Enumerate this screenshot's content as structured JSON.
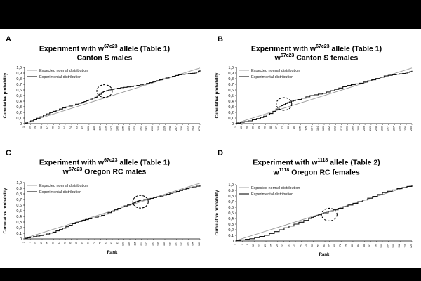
{
  "chart_data": [
    {
      "type": "line",
      "letter": "A",
      "title_parts": [
        "Experiment with w",
        "67c23",
        " allele (Table 1)"
      ],
      "subtitle_parts": [
        "",
        "",
        "Canton S males"
      ],
      "xlabel": "",
      "ylabel": "Cumulative probability",
      "yticks": [
        "0",
        "0,1",
        "0,2",
        "0,3",
        "0,4",
        "0,5",
        "0,6",
        "0,7",
        "0,8",
        "0,9",
        "1,0"
      ],
      "ylim": [
        0,
        1
      ],
      "x_range": [
        1,
        273
      ],
      "grid": false,
      "legend_position": "top-left",
      "series": [
        {
          "name": "Expected normal distribution",
          "x": [
            1,
            273
          ],
          "y": [
            0.01,
            0.99
          ]
        },
        {
          "name": "Experimental distribution",
          "x": [
            1,
            15,
            30,
            45,
            60,
            75,
            90,
            100,
            110,
            120,
            125,
            135,
            150,
            165,
            180,
            195,
            210,
            225,
            240,
            255,
            265,
            273
          ],
          "y": [
            0.01,
            0.07,
            0.15,
            0.22,
            0.28,
            0.33,
            0.38,
            0.42,
            0.47,
            0.55,
            0.58,
            0.61,
            0.64,
            0.66,
            0.69,
            0.73,
            0.78,
            0.83,
            0.87,
            0.89,
            0.9,
            0.95
          ]
        }
      ]
    },
    {
      "type": "line",
      "letter": "B",
      "title_parts": [
        "Experiment with w",
        "67c23",
        " allele (Table 1)"
      ],
      "subtitle_parts": [
        "w",
        "67c23",
        " Canton S females"
      ],
      "xlabel": "",
      "ylabel": "Cumulative probability",
      "yticks": [
        "0",
        "0,1",
        "0,2",
        "0,3",
        "0,4",
        "0,5",
        "0,6",
        "0,7",
        "0,8",
        "0,9",
        "1,0"
      ],
      "ylim": [
        0,
        1
      ],
      "x_range": [
        1,
        285
      ],
      "grid": false,
      "legend_position": "top-left",
      "series": [
        {
          "name": "Expected normal distribution",
          "x": [
            1,
            285
          ],
          "y": [
            0.01,
            0.99
          ]
        },
        {
          "name": "Experimental distribution",
          "x": [
            1,
            20,
            40,
            55,
            70,
            80,
            90,
            100,
            120,
            140,
            160,
            180,
            200,
            220,
            240,
            260,
            275,
            285
          ],
          "y": [
            0.01,
            0.05,
            0.11,
            0.18,
            0.3,
            0.36,
            0.4,
            0.43,
            0.5,
            0.54,
            0.61,
            0.68,
            0.72,
            0.78,
            0.85,
            0.88,
            0.9,
            0.94
          ]
        }
      ]
    },
    {
      "type": "line",
      "letter": "C",
      "title_parts": [
        "Experiment with w",
        "67c23",
        " allele (Table 1)"
      ],
      "subtitle_parts": [
        "w",
        "67c23",
        " Oregon RC males"
      ],
      "xlabel": "Rank",
      "ylabel": "Cumulative probability",
      "yticks": [
        "0",
        "0,1",
        "0,2",
        "0,3",
        "0,4",
        "0,5",
        "0,6",
        "0,7",
        "0,8",
        "0,9",
        "1,0"
      ],
      "ylim": [
        0,
        1
      ],
      "x_range": [
        1,
        181
      ],
      "grid": false,
      "legend_position": "top-left",
      "series": [
        {
          "name": "Expected normal distribution",
          "x": [
            1,
            181
          ],
          "y": [
            0.01,
            0.99
          ]
        },
        {
          "name": "Experimental distribution",
          "x": [
            1,
            10,
            20,
            30,
            40,
            50,
            60,
            70,
            80,
            90,
            100,
            110,
            115,
            120,
            130,
            140,
            150,
            160,
            170,
            181
          ],
          "y": [
            0.01,
            0.04,
            0.07,
            0.12,
            0.19,
            0.27,
            0.33,
            0.37,
            0.42,
            0.49,
            0.57,
            0.62,
            0.66,
            0.69,
            0.72,
            0.76,
            0.81,
            0.86,
            0.91,
            0.95
          ]
        }
      ]
    },
    {
      "type": "line",
      "letter": "D",
      "title_parts": [
        "Experiment with w",
        "1118",
        " allele (Table 2)"
      ],
      "subtitle_parts": [
        "w",
        "1118",
        " Oregon RC females"
      ],
      "xlabel": "Rank",
      "ylabel": "Cumulative probability",
      "yticks": [
        "0",
        "0,1",
        "0,2",
        "0,3",
        "0,4",
        "0,5",
        "0,6",
        "0,7",
        "0,8",
        "0,9",
        "1,0"
      ],
      "ylim": [
        0,
        1
      ],
      "x_range": [
        1,
        120
      ],
      "grid": false,
      "legend_position": "top-left",
      "series": [
        {
          "name": "Expected normal distribution",
          "x": [
            1,
            120
          ],
          "y": [
            0.01,
            0.99
          ]
        },
        {
          "name": "Experimental distribution",
          "x": [
            1,
            10,
            20,
            30,
            40,
            50,
            55,
            60,
            70,
            80,
            90,
            100,
            110,
            120
          ],
          "y": [
            0.01,
            0.04,
            0.1,
            0.2,
            0.3,
            0.4,
            0.45,
            0.5,
            0.58,
            0.67,
            0.76,
            0.86,
            0.93,
            0.99
          ]
        }
      ]
    }
  ]
}
